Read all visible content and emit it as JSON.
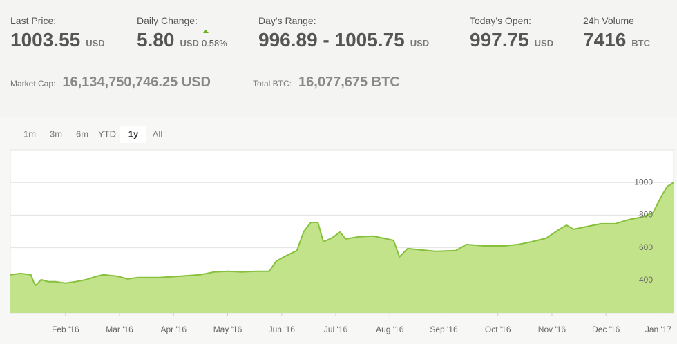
{
  "stats": [
    {
      "label": "Last Price:",
      "value": "1003.55",
      "unit": "USD"
    },
    {
      "label": "Daily Change:",
      "value": "5.80",
      "unit": "USD",
      "change": "0.58%"
    },
    {
      "label": "Day's Range:",
      "value": "996.89 - 1005.75",
      "unit": "USD"
    },
    {
      "label": "Today's Open:",
      "value": "997.75",
      "unit": "USD"
    },
    {
      "label": "24h Volume",
      "value": "7416",
      "unit": "BTC"
    }
  ],
  "market_cap": {
    "label": "Market Cap:",
    "value": "16,134,750,746.25 USD"
  },
  "total_btc": {
    "label": "Total BTC:",
    "value": "16,077,675 BTC"
  },
  "ranges": [
    "1m",
    "3m",
    "6m",
    "YTD",
    "1y",
    "All"
  ],
  "active_range": "1y",
  "chart_data": {
    "type": "area",
    "color": "#86c03c",
    "fill_color": "#c2e38a",
    "grid": true,
    "xlim": [
      -0.02,
      12.25
    ],
    "ylim": [
      200,
      1200
    ],
    "yticks": [
      400,
      600,
      800,
      1000
    ],
    "xticks": [
      {
        "value": 1,
        "label": "Feb '16"
      },
      {
        "value": 2,
        "label": "Mar '16"
      },
      {
        "value": 3,
        "label": "Apr '16"
      },
      {
        "value": 4,
        "label": "May '16"
      },
      {
        "value": 5,
        "label": "Jun '16"
      },
      {
        "value": 6,
        "label": "Jul '16"
      },
      {
        "value": 7,
        "label": "Aug '16"
      },
      {
        "value": 8,
        "label": "Sep '16"
      },
      {
        "value": 9,
        "label": "Oct '16"
      },
      {
        "value": 10,
        "label": "Nov '16"
      },
      {
        "value": 11,
        "label": "Dec '16"
      },
      {
        "value": 12,
        "label": "Jan '17"
      }
    ],
    "x": [
      -0.02,
      0.17,
      0.36,
      0.42,
      0.45,
      0.55,
      0.68,
      0.81,
      1.0,
      1.19,
      1.38,
      1.58,
      1.7,
      1.96,
      2.15,
      2.34,
      2.73,
      3.11,
      3.49,
      3.75,
      4.01,
      4.26,
      4.52,
      4.77,
      4.9,
      5.09,
      5.28,
      5.41,
      5.54,
      5.67,
      5.77,
      5.92,
      6.08,
      6.18,
      6.43,
      6.69,
      6.95,
      7.07,
      7.18,
      7.33,
      7.59,
      7.84,
      8.22,
      8.42,
      8.74,
      9.12,
      9.38,
      9.63,
      9.89,
      10.14,
      10.27,
      10.4,
      10.65,
      10.91,
      11.17,
      11.42,
      11.68,
      11.87,
      12.0,
      12.13,
      12.25
    ],
    "values": [
      434,
      442,
      434,
      383,
      370,
      404,
      392,
      392,
      383,
      392,
      404,
      425,
      434,
      425,
      408,
      417,
      417,
      425,
      434,
      451,
      455,
      451,
      455,
      455,
      518,
      552,
      582,
      700,
      755,
      755,
      637,
      658,
      696,
      654,
      667,
      671,
      654,
      645,
      544,
      595,
      586,
      578,
      582,
      620,
      611,
      611,
      620,
      637,
      658,
      713,
      738,
      713,
      730,
      747,
      747,
      772,
      789,
      814,
      899,
      975,
      1000
    ]
  }
}
